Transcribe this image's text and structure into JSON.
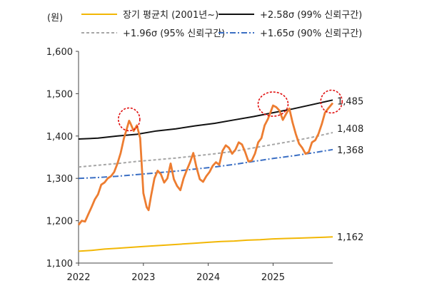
{
  "chart_data": {
    "type": "line",
    "unit_label": "(원)",
    "x_ticks": [
      "2022",
      "2023",
      "2024",
      "2025"
    ],
    "x_tick_positions": [
      2022.0,
      2023.0,
      2024.0,
      2025.0
    ],
    "xlim": [
      2022.0,
      2025.92
    ],
    "y_ticks": [
      "1,100",
      "1,200",
      "1,300",
      "1,400",
      "1,500",
      "1,600"
    ],
    "ylim": [
      1100,
      1600
    ],
    "grid": false,
    "series": [
      {
        "name": "장기 평균치 (2001년~)",
        "color": "#f2b705",
        "style": "solid",
        "x": [
          2022.0,
          2022.2,
          2022.4,
          2022.6,
          2022.8,
          2023.0,
          2023.2,
          2023.4,
          2023.6,
          2023.8,
          2024.0,
          2024.2,
          2024.4,
          2024.6,
          2024.8,
          2025.0,
          2025.2,
          2025.4,
          2025.6,
          2025.8,
          2025.92
        ],
        "values": [
          1128,
          1130,
          1133,
          1135,
          1137,
          1139,
          1141,
          1143,
          1145,
          1147,
          1149,
          1151,
          1152,
          1154,
          1155,
          1157,
          1158,
          1159,
          1160,
          1161,
          1162
        ]
      },
      {
        "name": "+2.58σ (99% 신뢰구간)",
        "color": "#111111",
        "style": "solid",
        "x": [
          2022.0,
          2022.3,
          2022.6,
          2022.9,
          2023.2,
          2023.5,
          2023.8,
          2024.1,
          2024.4,
          2024.7,
          2025.0,
          2025.3,
          2025.6,
          2025.92
        ],
        "values": [
          1393,
          1395,
          1400,
          1404,
          1412,
          1417,
          1424,
          1430,
          1438,
          1446,
          1455,
          1464,
          1474,
          1485
        ]
      },
      {
        "name": "+1.96σ (95% 신뢰구간)",
        "color": "#a6a6a6",
        "style": "dashed",
        "x": [
          2022.0,
          2022.3,
          2022.6,
          2022.9,
          2023.2,
          2023.5,
          2023.8,
          2024.1,
          2024.4,
          2024.7,
          2025.0,
          2025.3,
          2025.6,
          2025.92
        ],
        "values": [
          1327,
          1331,
          1335,
          1340,
          1344,
          1348,
          1353,
          1358,
          1364,
          1372,
          1380,
          1388,
          1397,
          1408
        ]
      },
      {
        "name": "+1.65σ (90% 신뢰구간)",
        "color": "#3b6fc4",
        "style": "dashdot",
        "x": [
          2022.0,
          2022.3,
          2022.6,
          2022.9,
          2023.2,
          2023.5,
          2023.8,
          2024.1,
          2024.4,
          2024.7,
          2025.0,
          2025.3,
          2025.6,
          2025.92
        ],
        "values": [
          1300,
          1302,
          1305,
          1309,
          1313,
          1317,
          1322,
          1327,
          1333,
          1340,
          1347,
          1353,
          1360,
          1368
        ]
      },
      {
        "name": "",
        "color": "#ed7d31",
        "style": "solid",
        "x": [
          2022.0,
          2022.05,
          2022.1,
          2022.15,
          2022.2,
          2022.25,
          2022.3,
          2022.35,
          2022.4,
          2022.45,
          2022.5,
          2022.55,
          2022.6,
          2022.65,
          2022.7,
          2022.75,
          2022.78,
          2022.8,
          2022.85,
          2022.9,
          2022.95,
          2023.0,
          2023.05,
          2023.08,
          2023.12,
          2023.17,
          2023.22,
          2023.27,
          2023.32,
          2023.37,
          2023.42,
          2023.47,
          2023.52,
          2023.57,
          2023.62,
          2023.67,
          2023.72,
          2023.77,
          2023.82,
          2023.87,
          2023.92,
          2023.97,
          2024.02,
          2024.07,
          2024.12,
          2024.17,
          2024.22,
          2024.27,
          2024.32,
          2024.37,
          2024.42,
          2024.47,
          2024.52,
          2024.57,
          2024.62,
          2024.67,
          2024.72,
          2024.77,
          2024.82,
          2024.87,
          2024.92,
          2024.97,
          2025.0,
          2025.05,
          2025.1,
          2025.15,
          2025.2,
          2025.25,
          2025.3,
          2025.35,
          2025.4,
          2025.45,
          2025.5,
          2025.55,
          2025.6,
          2025.65,
          2025.7,
          2025.75,
          2025.8,
          2025.85,
          2025.92
        ],
        "values": [
          1190,
          1200,
          1198,
          1215,
          1232,
          1250,
          1262,
          1285,
          1290,
          1300,
          1305,
          1315,
          1335,
          1360,
          1395,
          1420,
          1436,
          1430,
          1412,
          1425,
          1395,
          1265,
          1232,
          1225,
          1260,
          1300,
          1318,
          1310,
          1290,
          1300,
          1335,
          1298,
          1282,
          1272,
          1300,
          1320,
          1338,
          1360,
          1325,
          1298,
          1292,
          1305,
          1315,
          1330,
          1338,
          1332,
          1365,
          1378,
          1372,
          1358,
          1368,
          1385,
          1380,
          1362,
          1340,
          1342,
          1358,
          1385,
          1395,
          1425,
          1440,
          1460,
          1472,
          1468,
          1460,
          1438,
          1452,
          1465,
          1432,
          1405,
          1382,
          1372,
          1358,
          1362,
          1385,
          1390,
          1405,
          1428,
          1455,
          1465,
          1478
        ]
      }
    ],
    "end_labels": [
      "1,485",
      "1,408",
      "1,368",
      "1,162"
    ],
    "highlight_years": [
      2022.78,
      2025.0,
      2025.9
    ]
  }
}
